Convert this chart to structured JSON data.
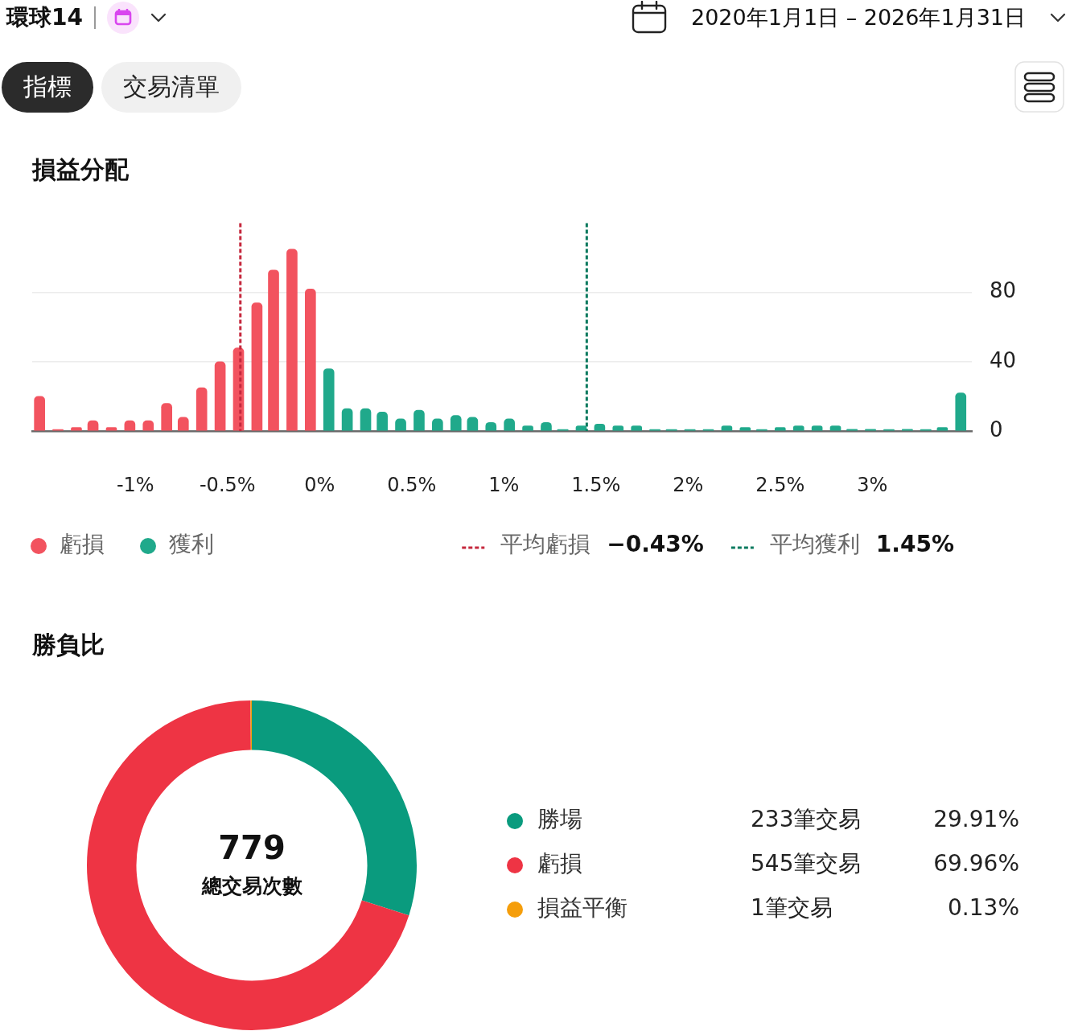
{
  "chart_data": [
    {
      "type": "other",
      "title": "環球14",
      "annotations": [
        "2020年1月1日 – 2026年1月31日",
        "指標",
        "交易清單"
      ]
    },
    {
      "type": "bar",
      "title": "損益分配",
      "series": [
        {
          "name": "虧損",
          "color": "#f2535f",
          "x": [
            -1.52,
            -1.42,
            -1.32,
            -1.23,
            -1.13,
            -1.03,
            -0.93,
            -0.83,
            -0.74,
            -0.64,
            -0.54,
            -0.44,
            -0.34,
            -0.25,
            -0.15,
            -0.05
          ],
          "values": [
            20,
            0,
            2,
            6,
            2,
            6,
            6,
            16,
            8,
            25,
            40,
            48,
            74,
            93,
            105,
            82
          ]
        },
        {
          "name": "獲利",
          "color": "#20a98b",
          "x": [
            0.05,
            0.15,
            0.25,
            0.34,
            0.44,
            0.54,
            0.64,
            0.74,
            0.83,
            0.93,
            1.03,
            1.13,
            1.23,
            1.32,
            1.42,
            1.52,
            1.62,
            1.72,
            1.82,
            1.91,
            2.01,
            2.11,
            2.21,
            2.31,
            2.4,
            2.5,
            2.6,
            2.7,
            2.8,
            2.89,
            2.99,
            3.09,
            3.19,
            3.29,
            3.38,
            3.48
          ],
          "values": [
            36,
            13,
            13,
            11,
            7,
            12,
            7,
            9,
            8,
            5,
            7,
            3,
            5,
            0,
            3,
            4,
            3,
            3,
            0,
            0,
            0,
            0,
            3,
            2,
            0,
            2,
            3,
            3,
            3,
            1,
            1,
            0,
            1,
            0,
            2,
            22
          ]
        }
      ],
      "xlim": [
        -1.56,
        3.54
      ],
      "xticks": [
        {
          "value": -1,
          "label": "-1%"
        },
        {
          "value": -0.5,
          "label": "-0.5%"
        },
        {
          "value": 0,
          "label": "0%"
        },
        {
          "value": 0.5,
          "label": "0.5%"
        },
        {
          "value": 1,
          "label": "1%"
        },
        {
          "value": 1.5,
          "label": "1.5%"
        },
        {
          "value": 2,
          "label": "2%"
        },
        {
          "value": 2.5,
          "label": "2.5%"
        },
        {
          "value": 3,
          "label": "3%"
        }
      ],
      "ylim": [
        0,
        120
      ],
      "yticks": [
        0,
        40,
        80
      ],
      "grid": "y",
      "legend": "bottom left",
      "ref_lines": [
        {
          "axis": "x",
          "value": -0.43,
          "label": "平均虧損 −0.43%",
          "color": "#c5283d",
          "line_style": "dashed"
        },
        {
          "axis": "x",
          "value": 1.45,
          "label": "平均獲利 1.45%",
          "color": "#0b7a5f",
          "line_style": "dashed"
        }
      ]
    },
    {
      "type": "donut",
      "title": "勝負比",
      "categories": [
        "勝場",
        "虧損",
        "損益平衡"
      ],
      "values": [
        233,
        545,
        1
      ],
      "colors": [
        "#0a9b7e",
        "#ee3444",
        "#f59e0b"
      ],
      "value_labels": [
        "233筆交易",
        "545筆交易",
        "1筆交易"
      ],
      "annotations": [
        "779",
        "總交易次數",
        "29.91%",
        "69.96%",
        "0.13%"
      ],
      "legend": "right"
    }
  ]
}
